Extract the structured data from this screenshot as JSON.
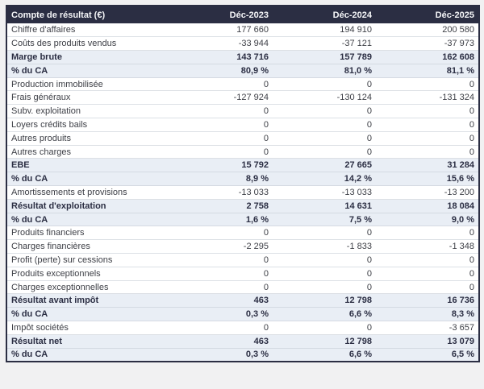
{
  "table": {
    "header": {
      "label": "Compte de résultat (€)",
      "columns": [
        "Déc-2023",
        "Déc-2024",
        "Déc-2025"
      ]
    },
    "rows": [
      {
        "label": "Chiffre d'affaires",
        "values": [
          "177 660",
          "194 910",
          "200 580"
        ],
        "style": "normal"
      },
      {
        "label": "Coûts des produits vendus",
        "values": [
          "-33 944",
          "-37 121",
          "-37 973"
        ],
        "style": "normal"
      },
      {
        "label": "Marge brute",
        "values": [
          "143 716",
          "157 789",
          "162 608"
        ],
        "style": "highlight"
      },
      {
        "label": "% du CA",
        "values": [
          "80,9 %",
          "81,0 %",
          "81,1 %"
        ],
        "style": "highlight"
      },
      {
        "label": "Production immobilisée",
        "values": [
          "0",
          "0",
          "0"
        ],
        "style": "normal"
      },
      {
        "label": "Frais généraux",
        "values": [
          "-127 924",
          "-130 124",
          "-131 324"
        ],
        "style": "normal"
      },
      {
        "label": "Subv. exploitation",
        "values": [
          "0",
          "0",
          "0"
        ],
        "style": "normal"
      },
      {
        "label": "Loyers crédits bails",
        "values": [
          "0",
          "0",
          "0"
        ],
        "style": "normal"
      },
      {
        "label": "Autres produits",
        "values": [
          "0",
          "0",
          "0"
        ],
        "style": "normal"
      },
      {
        "label": "Autres charges",
        "values": [
          "0",
          "0",
          "0"
        ],
        "style": "normal"
      },
      {
        "label": "EBE",
        "values": [
          "15 792",
          "27 665",
          "31 284"
        ],
        "style": "highlight"
      },
      {
        "label": "% du CA",
        "values": [
          "8,9 %",
          "14,2 %",
          "15,6 %"
        ],
        "style": "highlight"
      },
      {
        "label": "Amortissements et provisions",
        "values": [
          "-13 033",
          "-13 033",
          "-13 200"
        ],
        "style": "normal"
      },
      {
        "label": "Résultat d'exploitation",
        "values": [
          "2 758",
          "14 631",
          "18 084"
        ],
        "style": "highlight"
      },
      {
        "label": "% du CA",
        "values": [
          "1,6 %",
          "7,5 %",
          "9,0 %"
        ],
        "style": "highlight"
      },
      {
        "label": "Produits financiers",
        "values": [
          "0",
          "0",
          "0"
        ],
        "style": "normal"
      },
      {
        "label": "Charges financières",
        "values": [
          "-2 295",
          "-1 833",
          "-1 348"
        ],
        "style": "normal"
      },
      {
        "label": "Profit (perte) sur cessions",
        "values": [
          "0",
          "0",
          "0"
        ],
        "style": "normal"
      },
      {
        "label": "Produits exceptionnels",
        "values": [
          "0",
          "0",
          "0"
        ],
        "style": "normal"
      },
      {
        "label": "Charges exceptionnelles",
        "values": [
          "0",
          "0",
          "0"
        ],
        "style": "normal"
      },
      {
        "label": "Résultat avant impôt",
        "values": [
          "463",
          "12 798",
          "16 736"
        ],
        "style": "highlight"
      },
      {
        "label": "% du CA",
        "values": [
          "0,3 %",
          "6,6 %",
          "8,3 %"
        ],
        "style": "highlight"
      },
      {
        "label": "Impôt sociétés",
        "values": [
          "0",
          "0",
          "-3 657"
        ],
        "style": "normal"
      },
      {
        "label": "Résultat net",
        "values": [
          "463",
          "12 798",
          "13 079"
        ],
        "style": "highlight"
      },
      {
        "label": "% du CA",
        "values": [
          "0,3 %",
          "6,6 %",
          "6,5 %"
        ],
        "style": "highlight"
      }
    ],
    "colors": {
      "header_bg": "#2b2e43",
      "header_text": "#f5f6f8",
      "highlight_row_bg": "#e9eef5",
      "highlight_text": "#2b2e43",
      "normal_text": "#3d3f46",
      "row_border": "#dce0e5",
      "outer_border": "#2b2e43",
      "page_bg": "#f1f1f2"
    }
  }
}
